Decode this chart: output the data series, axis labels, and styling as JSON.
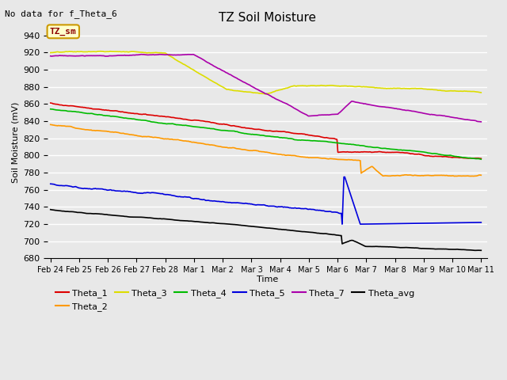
{
  "title": "TZ Soil Moisture",
  "subtitle": "No data for f_Theta_6",
  "xlabel": "Time",
  "ylabel": "Soil Moisture (mV)",
  "ylim": [
    680,
    950
  ],
  "yticks": [
    680,
    700,
    720,
    740,
    760,
    780,
    800,
    820,
    840,
    860,
    880,
    900,
    920,
    940
  ],
  "plot_bg_color": "#e8e8e8",
  "legend_label": "TZ_sm",
  "legend_box_color": "#ffffcc",
  "legend_box_edge": "#cc9900",
  "series_colors": {
    "Theta_1": "#dd0000",
    "Theta_2": "#ff9900",
    "Theta_3": "#dddd00",
    "Theta_4": "#00bb00",
    "Theta_5": "#0000dd",
    "Theta_7": "#aa00aa",
    "Theta_avg": "#000000"
  },
  "date_labels": [
    "Feb 24",
    "Feb 25",
    "Feb 26",
    "Feb 27",
    "Feb 28",
    "Mar 1",
    "Mar 2",
    "Mar 3",
    "Mar 4",
    "Mar 5",
    "Mar 6",
    "Mar 7",
    "Mar 8",
    "Mar 9",
    "Mar 10",
    "Mar 11"
  ]
}
